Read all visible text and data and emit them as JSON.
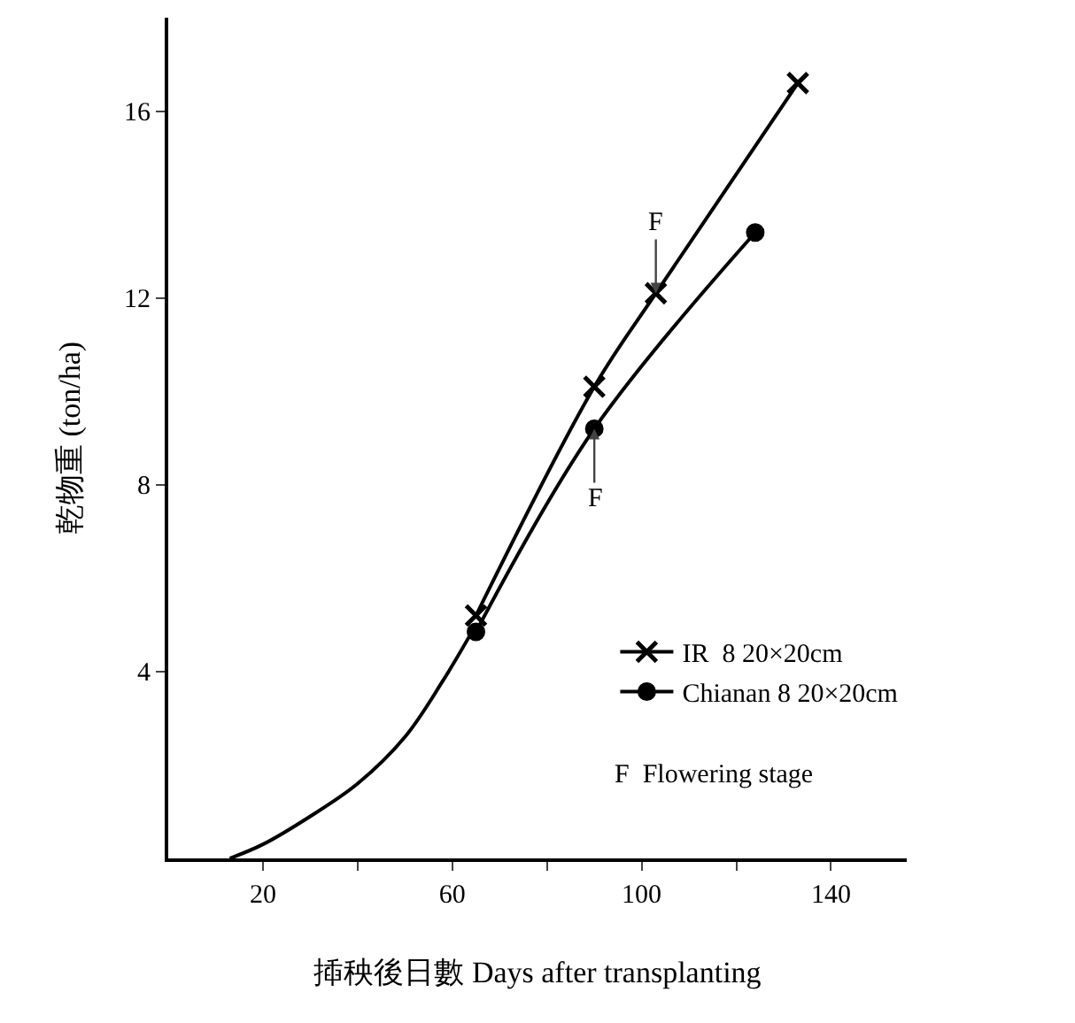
{
  "chart_data": {
    "type": "line",
    "xlabel": "揷秧後日數 Days after transplanting",
    "ylabel": "乾物重 (ton/ha)",
    "xlim": [
      0,
      156
    ],
    "ylim": [
      0,
      18
    ],
    "xticks": [
      20,
      {
        "value": 40,
        "label": null
      },
      60,
      {
        "value": 80,
        "label": null
      },
      100,
      {
        "value": 120,
        "label": null
      },
      140
    ],
    "yticks": [
      4,
      8,
      12,
      16
    ],
    "grid": false,
    "legend": "bottom right",
    "line_style": "solid",
    "series": [
      {
        "type": "line",
        "marker": "none",
        "color": "#000000",
        "x": [
          13,
          20,
          30,
          40,
          50,
          58,
          65
        ],
        "values": [
          0,
          0.3,
          0.9,
          1.6,
          2.6,
          3.8,
          5
        ]
      },
      {
        "name": "IR  8 20×20cm",
        "marker": "cross",
        "color": "#000000",
        "x": [
          65,
          90,
          103,
          133
        ],
        "values": [
          5.2,
          10.1,
          12.1,
          16.6
        ]
      },
      {
        "name": "Chianan 8 20×20cm",
        "marker": "circle",
        "color": "#000000",
        "x": [
          65,
          90,
          124
        ],
        "values": [
          4.85,
          9.2,
          13.4
        ]
      }
    ],
    "annotations": [
      {
        "text": "F",
        "x": 103,
        "y": 12.1
      },
      {
        "text": "F",
        "x": 90,
        "y": 9.2
      },
      "F  Flowering stage"
    ]
  }
}
